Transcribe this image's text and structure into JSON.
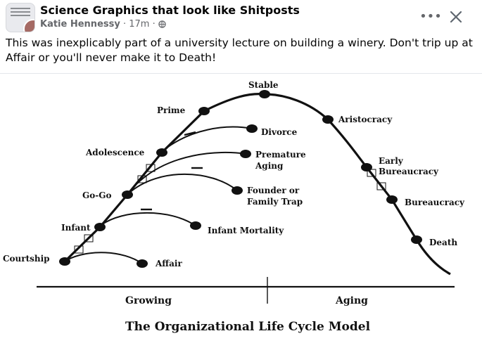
{
  "header": {
    "group_name": "Science Graphics that look like Shitposts",
    "author": "Katie Hennessy",
    "separator": "·",
    "time": "17m",
    "privacy_icon": "globe-icon",
    "more_icon": "more-icon",
    "more_label": "•••",
    "close_icon": "close-icon"
  },
  "post": {
    "caption": "This was inexplicably part of a university lecture on building a winery. Don't trip up at Affair or you'll never make it to Death!"
  },
  "figure": {
    "title": "The Organizational Life Cycle Model",
    "axis_left": "Growing",
    "axis_right": "Aging",
    "stages": {
      "courtship": "Courtship",
      "infant": "Infant",
      "gogo": "Go-Go",
      "adolescence": "Adolescence",
      "prime": "Prime",
      "stable": "Stable",
      "aristocracy": "Aristocracy",
      "early_bureaucracy_1": "Early",
      "early_bureaucracy_2": "Bureaucracy",
      "bureaucracy": "Bureaucracy",
      "death": "Death"
    },
    "traps": {
      "affair": "Affair",
      "infant_mortality": "Infant Mortality",
      "founder_1": "Founder or",
      "founder_2": "Family Trap",
      "premature_1": "Premature",
      "premature_2": "Aging",
      "divorce": "Divorce"
    }
  }
}
